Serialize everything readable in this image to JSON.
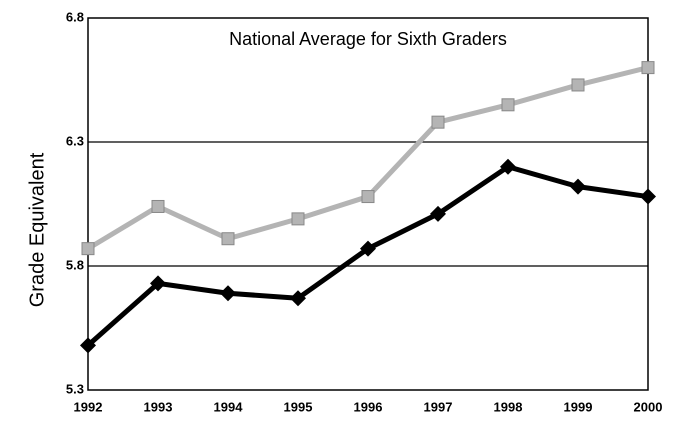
{
  "chart_data": {
    "type": "line",
    "title": "National Average for Sixth Graders",
    "y_label": "Grade Equivalent",
    "categories": [
      "1992",
      "1993",
      "1994",
      "1995",
      "1996",
      "1997",
      "1998",
      "1999",
      "2000"
    ],
    "series": [
      {
        "color": "#b4b4b4",
        "marker": "square",
        "values": [
          5.87,
          6.04,
          5.91,
          5.99,
          6.08,
          6.38,
          6.45,
          6.53,
          6.6
        ]
      },
      {
        "color": "#000000",
        "marker": "diamond",
        "values": [
          5.48,
          5.73,
          5.69,
          5.67,
          5.87,
          6.01,
          6.2,
          6.12,
          6.08
        ]
      }
    ],
    "ylim": [
      5.3,
      6.8
    ],
    "yticks": [
      5.3,
      5.8,
      6.3,
      6.8
    ],
    "grid": true
  }
}
